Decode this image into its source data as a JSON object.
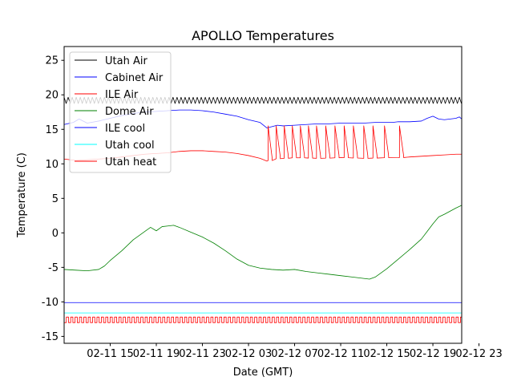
{
  "chart_data": {
    "type": "line",
    "title": "APOLLO Temperatures",
    "xlabel": "Date (GMT)",
    "ylabel": "Temperature (C)",
    "xlim_hours": [
      0,
      34.5
    ],
    "ylim": [
      -16,
      27
    ],
    "yticks": [
      -15,
      -10,
      -5,
      0,
      5,
      10,
      15,
      20,
      25
    ],
    "xticks": [
      {
        "hour": 4,
        "label": "02-11 15"
      },
      {
        "hour": 8,
        "label": "02-11 19"
      },
      {
        "hour": 12,
        "label": "02-11 23"
      },
      {
        "hour": 16,
        "label": "02-12 03"
      },
      {
        "hour": 20,
        "label": "02-12 07"
      },
      {
        "hour": 24,
        "label": "02-12 11"
      },
      {
        "hour": 28,
        "label": "02-12 15"
      },
      {
        "hour": 32,
        "label": "02-12 19"
      },
      {
        "hour": 36,
        "label": "02-12 23"
      }
    ],
    "legend_position": "upper-left",
    "series": [
      {
        "name": "Utah Air",
        "color": "#000000",
        "style": "oscillating",
        "points": [
          [
            0,
            19.2
          ],
          [
            34.5,
            19.2
          ]
        ],
        "amplitude": 0.45,
        "period_hours": 0.35
      },
      {
        "name": "Cabinet Air",
        "color": "#0000ff",
        "style": "line",
        "points": [
          [
            0,
            15.7
          ],
          [
            0.8,
            16.0
          ],
          [
            1.3,
            16.5
          ],
          [
            2.0,
            15.9
          ],
          [
            3.0,
            16.2
          ],
          [
            4.0,
            16.6
          ],
          [
            5.0,
            17.0
          ],
          [
            6.0,
            17.3
          ],
          [
            7.0,
            17.5
          ],
          [
            8.0,
            17.6
          ],
          [
            9.0,
            17.7
          ],
          [
            10.0,
            17.8
          ],
          [
            11.0,
            17.8
          ],
          [
            12.0,
            17.7
          ],
          [
            13.0,
            17.5
          ],
          [
            14.0,
            17.2
          ],
          [
            15.0,
            16.9
          ],
          [
            16.0,
            16.4
          ],
          [
            17.0,
            16.0
          ],
          [
            17.6,
            15.2
          ],
          [
            18.5,
            15.6
          ],
          [
            19.0,
            15.5
          ],
          [
            20.0,
            15.6
          ],
          [
            21.0,
            15.7
          ],
          [
            22.0,
            15.8
          ],
          [
            23.0,
            15.8
          ],
          [
            24.0,
            15.9
          ],
          [
            25.0,
            15.9
          ],
          [
            26.0,
            15.9
          ],
          [
            27.0,
            16.0
          ],
          [
            28.0,
            16.0
          ],
          [
            28.5,
            16.0
          ],
          [
            29.0,
            16.1
          ],
          [
            30.0,
            16.1
          ],
          [
            31.0,
            16.2
          ],
          [
            31.5,
            16.6
          ],
          [
            32.0,
            16.9
          ],
          [
            32.5,
            16.5
          ],
          [
            33.0,
            16.4
          ],
          [
            34.0,
            16.6
          ],
          [
            34.3,
            16.8
          ],
          [
            34.5,
            16.5
          ]
        ]
      },
      {
        "name": "ILE Air",
        "color": "#ff0000",
        "style": "line",
        "points": [
          [
            0,
            10.7
          ],
          [
            1.0,
            10.5
          ],
          [
            2.0,
            10.6
          ],
          [
            3.0,
            10.7
          ],
          [
            4.0,
            10.8
          ],
          [
            5.0,
            11.0
          ],
          [
            6.0,
            11.2
          ],
          [
            7.0,
            11.4
          ],
          [
            8.0,
            11.5
          ],
          [
            9.0,
            11.6
          ],
          [
            10.0,
            11.8
          ],
          [
            11.0,
            11.9
          ],
          [
            12.0,
            11.9
          ],
          [
            13.0,
            11.8
          ],
          [
            14.0,
            11.7
          ],
          [
            15.0,
            11.5
          ],
          [
            16.0,
            11.2
          ],
          [
            17.0,
            10.8
          ],
          [
            17.6,
            10.4
          ],
          [
            18.0,
            10.7
          ],
          [
            19.0,
            10.8
          ],
          [
            20.0,
            10.9
          ],
          [
            22.0,
            10.8
          ],
          [
            24.0,
            10.9
          ],
          [
            26.0,
            10.8
          ],
          [
            28.0,
            10.9
          ],
          [
            29.0,
            10.9
          ],
          [
            30.0,
            11.0
          ],
          [
            31.0,
            11.1
          ],
          [
            32.0,
            11.2
          ],
          [
            33.0,
            11.3
          ],
          [
            34.0,
            11.4
          ],
          [
            34.5,
            11.4
          ]
        ],
        "spikes": {
          "hours": [
            17.7,
            18.4,
            19.1,
            19.8,
            20.5,
            21.2,
            21.9,
            22.7,
            23.5,
            24.3,
            25.1,
            26.0,
            26.8,
            27.8,
            29.1
          ],
          "peak": 15.5
        }
      },
      {
        "name": "Dome Air",
        "color": "#008000",
        "style": "line",
        "points": [
          [
            0,
            -5.3
          ],
          [
            1.0,
            -5.4
          ],
          [
            2.0,
            -5.5
          ],
          [
            3.0,
            -5.3
          ],
          [
            3.5,
            -4.8
          ],
          [
            4.0,
            -4.0
          ],
          [
            5.0,
            -2.6
          ],
          [
            6.0,
            -1.0
          ],
          [
            7.0,
            0.2
          ],
          [
            7.5,
            0.8
          ],
          [
            8.0,
            0.3
          ],
          [
            8.5,
            0.9
          ],
          [
            9.0,
            1.0
          ],
          [
            9.5,
            1.1
          ],
          [
            10.0,
            0.8
          ],
          [
            11.0,
            0.1
          ],
          [
            12.0,
            -0.6
          ],
          [
            13.0,
            -1.5
          ],
          [
            14.0,
            -2.6
          ],
          [
            15.0,
            -3.8
          ],
          [
            16.0,
            -4.7
          ],
          [
            17.0,
            -5.1
          ],
          [
            18.0,
            -5.3
          ],
          [
            19.0,
            -5.4
          ],
          [
            20.0,
            -5.3
          ],
          [
            21.0,
            -5.6
          ],
          [
            22.0,
            -5.8
          ],
          [
            23.0,
            -6.0
          ],
          [
            24.0,
            -6.2
          ],
          [
            25.0,
            -6.4
          ],
          [
            26.0,
            -6.6
          ],
          [
            26.5,
            -6.7
          ],
          [
            27.0,
            -6.4
          ],
          [
            28.0,
            -5.2
          ],
          [
            29.0,
            -3.8
          ],
          [
            30.0,
            -2.4
          ],
          [
            31.0,
            -0.9
          ],
          [
            31.5,
            0.2
          ],
          [
            32.0,
            1.3
          ],
          [
            32.5,
            2.3
          ],
          [
            33.0,
            2.7
          ],
          [
            34.0,
            3.6
          ],
          [
            35.0,
            4.4
          ],
          [
            36.0,
            4.8
          ],
          [
            36.5,
            4.7
          ],
          [
            37.0,
            4.0
          ]
        ]
      },
      {
        "name": "ILE cool",
        "color": "#0000ff",
        "style": "line",
        "points": [
          [
            0,
            -10.1
          ],
          [
            34.5,
            -10.1
          ]
        ]
      },
      {
        "name": "Utah cool",
        "color": "#00ffff",
        "style": "line",
        "points": [
          [
            0,
            -11.6
          ],
          [
            34.5,
            -11.6
          ]
        ]
      },
      {
        "name": "Utah heat",
        "color": "#ff0000",
        "style": "square",
        "low": -13.0,
        "high": -12.2,
        "period_hours": 0.38
      }
    ]
  }
}
